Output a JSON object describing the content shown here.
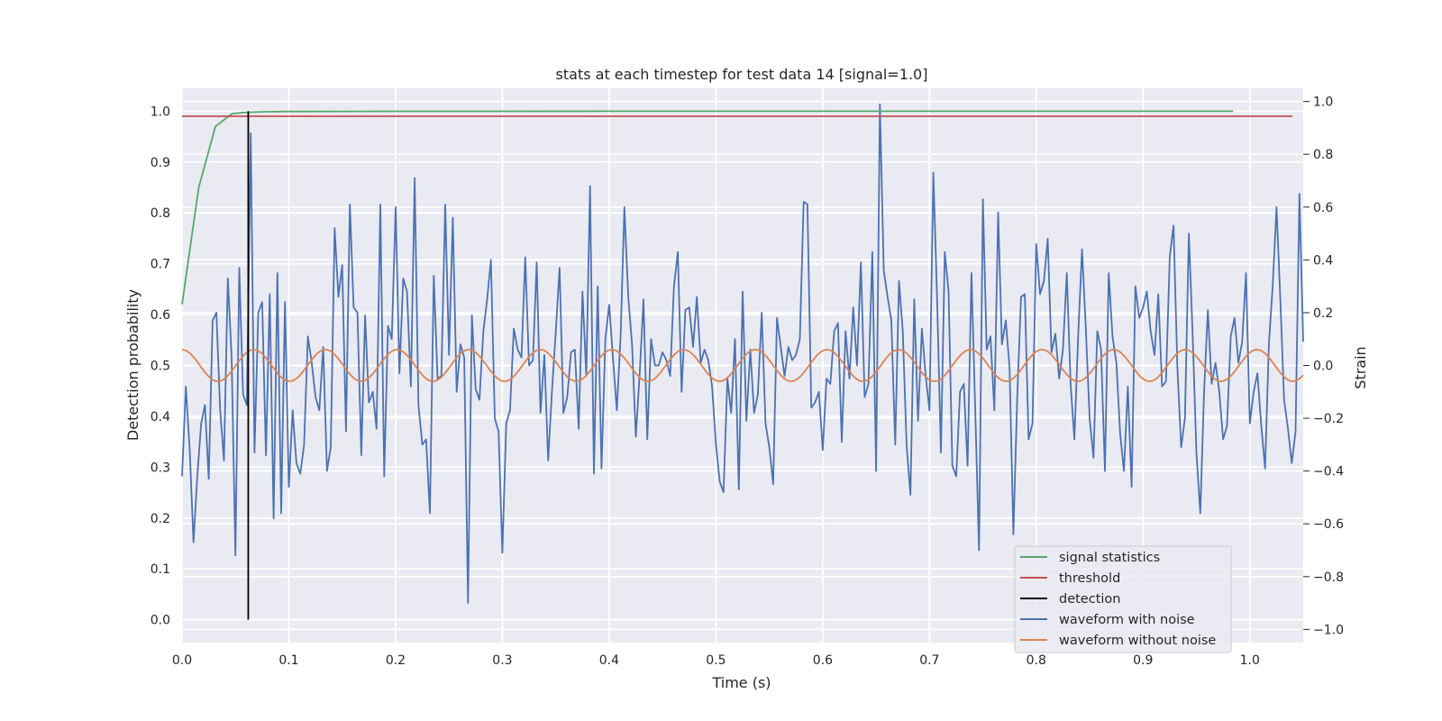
{
  "chart_data": {
    "type": "line",
    "title": "stats at each timestep for test data 14 [signal=1.0]",
    "xlabel": "Time (s)",
    "ylabel_left": "Detection probability",
    "ylabel_right": "Strain",
    "xlim": [
      0.0,
      1.05
    ],
    "ylim_left": [
      -0.045,
      1.045
    ],
    "ylim_right": [
      -1.05,
      1.05
    ],
    "x_ticks": [
      "0.0",
      "0.1",
      "0.2",
      "0.3",
      "0.4",
      "0.5",
      "0.6",
      "0.7",
      "0.8",
      "0.9",
      "1.0"
    ],
    "left_ticks": [
      "0.0",
      "0.1",
      "0.2",
      "0.3",
      "0.4",
      "0.5",
      "0.6",
      "0.7",
      "0.8",
      "0.9",
      "1.0"
    ],
    "right_ticks": [
      "−1.0",
      "−0.8",
      "−0.6",
      "−0.4",
      "−0.2",
      "0.0",
      "0.2",
      "0.4",
      "0.6",
      "0.8",
      "1.0"
    ],
    "grid": true,
    "legend_position": "lower-right",
    "colors": {
      "background": "#eaeaf2",
      "grid": "#ffffff",
      "signal_statistics": "#55a868",
      "threshold": "#c44e52",
      "detection": "#000000",
      "waveform_with_noise": "#4c72b0",
      "waveform_without_noise": "#dd8452"
    },
    "legend": [
      {
        "label": "signal statistics",
        "color": "#55a868"
      },
      {
        "label": "threshold",
        "color": "#c44e52"
      },
      {
        "label": "detection",
        "color": "#000000"
      },
      {
        "label": "waveform with noise",
        "color": "#4c72b0"
      },
      {
        "label": "waveform without noise",
        "color": "#dd8452"
      }
    ],
    "signal_statistics": {
      "axis": "left",
      "x": [
        0.0,
        0.0156,
        0.0312,
        0.0468,
        0.055,
        0.0625,
        0.0781,
        0.1,
        0.2,
        0.4,
        0.6,
        0.8,
        0.9844
      ],
      "y": [
        0.62,
        0.85,
        0.97,
        0.995,
        0.997,
        0.998,
        0.999,
        0.9995,
        0.9998,
        0.9999,
        1.0,
        1.0,
        1.0
      ]
    },
    "threshold": {
      "axis": "left",
      "x": [
        0.0,
        1.04
      ],
      "y": [
        0.99,
        0.99
      ]
    },
    "detection": {
      "axis": "left",
      "x": 0.062,
      "y": [
        0.0,
        1.0
      ]
    },
    "waveform_without_noise": {
      "axis": "right",
      "amplitude": 0.06,
      "frequency_hz": 14.9,
      "phase": 1.5708,
      "x_range": [
        0.0,
        1.05
      ]
    },
    "waveform_with_noise": {
      "axis": "right",
      "x_range": [
        0.0,
        1.05
      ],
      "values": [
        -0.42,
        -0.08,
        -0.32,
        -0.67,
        -0.42,
        -0.22,
        -0.15,
        -0.43,
        0.17,
        0.2,
        -0.17,
        -0.36,
        0.33,
        0.03,
        -0.72,
        0.37,
        -0.11,
        -0.15,
        0.88,
        -0.33,
        0.2,
        0.24,
        -0.34,
        0.27,
        -0.58,
        0.35,
        -0.56,
        0.24,
        -0.46,
        -0.17,
        -0.37,
        -0.41,
        -0.3,
        0.11,
        0.01,
        -0.12,
        -0.17,
        0.07,
        -0.4,
        -0.31,
        0.52,
        0.26,
        0.38,
        -0.25,
        0.61,
        0.22,
        0.2,
        -0.34,
        0.19,
        -0.14,
        -0.1,
        -0.24,
        0.61,
        -0.42,
        0.15,
        0.1,
        0.6,
        -0.03,
        0.33,
        0.28,
        -0.08,
        0.71,
        -0.15,
        -0.3,
        -0.28,
        -0.56,
        0.34,
        -0.05,
        -0.04,
        0.61,
        0.04,
        0.56,
        -0.1,
        0.08,
        0.03,
        -0.9,
        0.19,
        -0.09,
        -0.13,
        0.13,
        0.25,
        0.4,
        -0.2,
        -0.25,
        -0.71,
        -0.22,
        -0.17,
        0.14,
        0.06,
        0.03,
        0.41,
        -0.0,
        0.02,
        0.39,
        -0.18,
        0.04,
        -0.36,
        -0.1,
        0.13,
        0.37,
        -0.18,
        -0.12,
        0.05,
        0.06,
        -0.24,
        0.28,
        -0.04,
        0.68,
        -0.41,
        0.3,
        -0.39,
        0.1,
        0.23,
        0.03,
        -0.17,
        0.11,
        0.6,
        0.26,
        0.08,
        -0.27,
        -0.03,
        0.25,
        -0.28,
        0.1,
        0.0,
        0.0,
        0.05,
        0.02,
        -0.04,
        0.3,
        0.43,
        -0.1,
        0.21,
        0.22,
        0.07,
        0.26,
        0.01,
        0.06,
        0.02,
        -0.08,
        -0.3,
        -0.44,
        -0.48,
        -0.05,
        -0.18,
        0.1,
        -0.47,
        0.28,
        -0.21,
        0.06,
        -0.18,
        -0.11,
        0.2,
        -0.22,
        -0.31,
        -0.45,
        0.18,
        0.07,
        -0.04,
        0.07,
        0.02,
        0.04,
        0.1,
        0.62,
        0.61,
        -0.16,
        -0.14,
        -0.1,
        -0.32,
        -0.05,
        -0.07,
        0.13,
        0.16,
        -0.29,
        0.13,
        -0.05,
        0.22,
        0.0,
        0.39,
        -0.12,
        -0.07,
        0.43,
        -0.4,
        0.99,
        0.36,
        0.26,
        0.17,
        -0.3,
        0.32,
        0.13,
        -0.3,
        -0.49,
        0.25,
        -0.21,
        0.14,
        -0.04,
        -0.17,
        0.73,
        0.25,
        -0.33,
        0.43,
        0.28,
        -0.38,
        -0.42,
        -0.1,
        -0.07,
        -0.38,
        0.35,
        -0.17,
        -0.7,
        0.63,
        0.06,
        0.11,
        -0.17,
        0.58,
        0.08,
        0.17,
        -0.01,
        -0.64,
        -0.12,
        0.26,
        0.27,
        -0.28,
        -0.22,
        0.46,
        0.27,
        0.32,
        0.48,
        0.05,
        0.12,
        -0.05,
        0.06,
        0.35,
        -0.07,
        -0.28,
        0.12,
        0.44,
        0.14,
        -0.2,
        -0.35,
        0.13,
        0.06,
        -0.4,
        0.35,
        0.11,
        0.01,
        -0.26,
        -0.4,
        -0.08,
        -0.46,
        0.3,
        0.18,
        0.22,
        0.28,
        0.13,
        0.04,
        0.27,
        -0.08,
        -0.06,
        0.41,
        0.53,
        -0.01,
        -0.31,
        -0.2,
        0.5,
        0.12,
        -0.33,
        -0.56,
        -0.1,
        0.21,
        -0.07,
        0.01,
        -0.1,
        -0.28,
        -0.23,
        0.11,
        0.18,
        0.01,
        0.09,
        0.35,
        -0.22,
        -0.1,
        -0.03,
        -0.23,
        -0.39,
        0.08,
        0.3,
        0.6,
        0.25,
        -0.13,
        -0.24,
        -0.37,
        -0.25,
        0.65,
        0.09
      ]
    }
  }
}
